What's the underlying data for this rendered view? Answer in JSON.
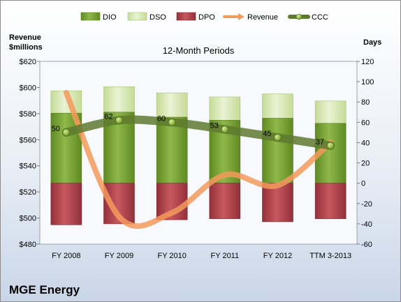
{
  "chart_data": {
    "type": "bar",
    "title": "12-Month Periods",
    "company": "MGE Energy",
    "left_axis_label": [
      "Revenue",
      "$millions"
    ],
    "right_axis_label": "Days",
    "categories": [
      "FY 2008",
      "FY 2009",
      "FY 2010",
      "FY 2011",
      "FY 2012",
      "TTM 3-2013"
    ],
    "left_ylim": [
      480,
      620
    ],
    "left_ticks": [
      "$480",
      "$500",
      "$520",
      "$540",
      "$560",
      "$580",
      "$600",
      "$620"
    ],
    "right_ylim": [
      -60,
      120
    ],
    "right_ticks": [
      "-60",
      "-40",
      "-20",
      "0",
      "20",
      "40",
      "60",
      "80",
      "100",
      "120"
    ],
    "stacked_series_units": "days",
    "series": [
      {
        "name": "DIO",
        "kind": "bar-stacked",
        "color": "#77a033",
        "values": [
          69,
          70,
          65,
          62,
          64,
          59
        ]
      },
      {
        "name": "DSO",
        "kind": "bar-stacked",
        "color": "#d6e6b0",
        "values": [
          22,
          25,
          24,
          23,
          24,
          22
        ]
      },
      {
        "name": "DPO",
        "kind": "bar-stacked",
        "color": "#b5454a",
        "values": [
          -41,
          -40,
          -36,
          -35,
          -38,
          -35
        ]
      },
      {
        "name": "Revenue",
        "kind": "line",
        "axis": "left",
        "color": "#f39a5c",
        "values": [
          596,
          501,
          504,
          533,
          525,
          558
        ]
      },
      {
        "name": "CCC",
        "kind": "line",
        "axis": "right",
        "color": "#5e7a2f",
        "values": [
          50,
          62,
          60,
          53,
          45,
          37
        ],
        "labels": [
          "50",
          "62",
          "60",
          "53",
          "45",
          "37"
        ]
      }
    ],
    "legend_position": "top",
    "grid": false
  }
}
